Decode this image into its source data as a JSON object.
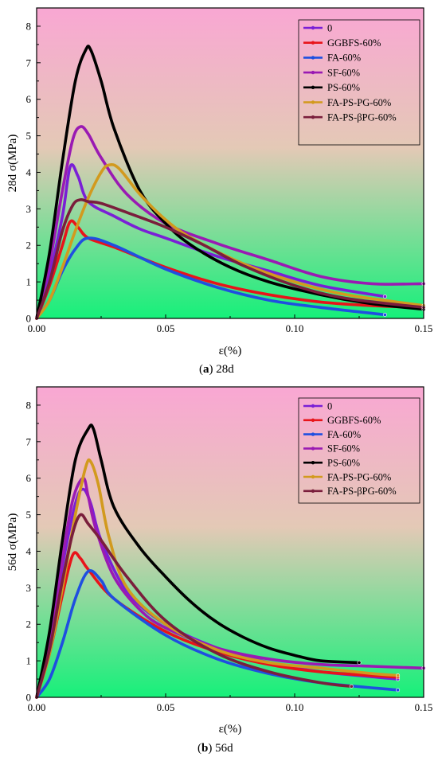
{
  "colors": {
    "0": "#7a1fd6",
    "GGBFS-60%": "#e8141a",
    "FA-60%": "#1f4fe0",
    "SF-60%": "#9a1ab3",
    "PS-60%": "#000000",
    "FA-PS-PG-60%": "#d29a1e",
    "FA-PS-βPG-60%": "#7a1e3c",
    "bg_top": "#f9a7d3",
    "bg_bottom": "#16f07a"
  },
  "chart_data": [
    {
      "type": "line",
      "panel": "a",
      "caption_letter": "a",
      "caption_text": " 28d",
      "xlabel": "ε(%)",
      "ylabel": "28d σ(MPa)",
      "xlim": [
        0,
        0.15
      ],
      "ylim": [
        0,
        8.5
      ],
      "xticks": [
        0,
        0.05,
        0.1,
        0.15
      ],
      "xtick_labels": [
        "0.00",
        "0.05",
        "0.10",
        "0.15"
      ],
      "yticks": [
        0,
        1,
        2,
        3,
        4,
        5,
        6,
        7,
        8
      ],
      "ytick_labels": [
        "0",
        "1",
        "2",
        "3",
        "4",
        "5",
        "6",
        "7",
        "8"
      ],
      "legend_position": "top-right",
      "series": [
        {
          "name": "0",
          "x": [
            0,
            0.005,
            0.01,
            0.013,
            0.016,
            0.02,
            0.03,
            0.04,
            0.05,
            0.07,
            0.09,
            0.11,
            0.135
          ],
          "y": [
            0,
            1.2,
            2.8,
            4.15,
            3.9,
            3.2,
            2.8,
            2.45,
            2.2,
            1.7,
            1.3,
            0.9,
            0.6
          ]
        },
        {
          "name": "GGBFS-60%",
          "x": [
            0,
            0.005,
            0.01,
            0.013,
            0.016,
            0.02,
            0.03,
            0.05,
            0.07,
            0.09,
            0.11,
            0.13,
            0.15
          ],
          "y": [
            0,
            0.9,
            2.0,
            2.65,
            2.5,
            2.2,
            1.95,
            1.4,
            0.95,
            0.65,
            0.45,
            0.35,
            0.3
          ]
        },
        {
          "name": "FA-60%",
          "x": [
            0,
            0.005,
            0.01,
            0.015,
            0.02,
            0.03,
            0.05,
            0.07,
            0.09,
            0.11,
            0.135
          ],
          "y": [
            0,
            0.5,
            1.3,
            1.9,
            2.2,
            2.0,
            1.35,
            0.85,
            0.5,
            0.3,
            0.1
          ]
        },
        {
          "name": "SF-60%",
          "x": [
            0,
            0.005,
            0.01,
            0.014,
            0.017,
            0.02,
            0.025,
            0.035,
            0.05,
            0.07,
            0.09,
            0.11,
            0.13,
            0.15
          ],
          "y": [
            0,
            1.5,
            3.5,
            4.9,
            5.25,
            5.05,
            4.4,
            3.4,
            2.6,
            2.05,
            1.6,
            1.15,
            0.95,
            0.95
          ]
        },
        {
          "name": "PS-60%",
          "x": [
            0,
            0.005,
            0.01,
            0.015,
            0.019,
            0.021,
            0.025,
            0.03,
            0.04,
            0.05,
            0.06,
            0.075,
            0.09,
            0.11,
            0.13,
            0.15
          ],
          "y": [
            0,
            1.8,
            4.3,
            6.5,
            7.35,
            7.35,
            6.5,
            5.2,
            3.5,
            2.6,
            2.0,
            1.4,
            1.0,
            0.65,
            0.4,
            0.25
          ]
        },
        {
          "name": "FA-PS-PG-60%",
          "x": [
            0,
            0.005,
            0.01,
            0.015,
            0.02,
            0.025,
            0.028,
            0.032,
            0.04,
            0.05,
            0.06,
            0.08,
            0.1,
            0.12,
            0.15
          ],
          "y": [
            0,
            0.5,
            1.4,
            2.4,
            3.3,
            4.0,
            4.2,
            4.1,
            3.4,
            2.7,
            2.2,
            1.5,
            1.0,
            0.65,
            0.35
          ]
        },
        {
          "name": "FA-PS-βPG-60%",
          "x": [
            0,
            0.005,
            0.01,
            0.014,
            0.017,
            0.02,
            0.025,
            0.035,
            0.05,
            0.065,
            0.08,
            0.1,
            0.12,
            0.15
          ],
          "y": [
            0,
            1.0,
            2.4,
            3.1,
            3.25,
            3.2,
            3.15,
            2.9,
            2.5,
            2.0,
            1.45,
            0.9,
            0.55,
            0.3
          ]
        }
      ]
    },
    {
      "type": "line",
      "panel": "b",
      "caption_letter": "b",
      "caption_text": " 56d",
      "xlabel": "ε(%)",
      "ylabel": "56d σ(MPa)",
      "xlim": [
        0,
        0.15
      ],
      "ylim": [
        0,
        8.5
      ],
      "xticks": [
        0,
        0.05,
        0.1,
        0.15
      ],
      "xtick_labels": [
        "0.00",
        "0.05",
        "0.10",
        "0.15"
      ],
      "yticks": [
        0,
        1,
        2,
        3,
        4,
        5,
        6,
        7,
        8
      ],
      "ytick_labels": [
        "0",
        "1",
        "2",
        "3",
        "4",
        "5",
        "6",
        "7",
        "8"
      ],
      "legend_position": "top-right",
      "series": [
        {
          "name": "0",
          "x": [
            0,
            0.005,
            0.01,
            0.015,
            0.018,
            0.021,
            0.025,
            0.035,
            0.05,
            0.07,
            0.09,
            0.11,
            0.14
          ],
          "y": [
            0,
            1.5,
            3.6,
            5.3,
            5.7,
            5.3,
            4.3,
            2.9,
            2.0,
            1.35,
            0.95,
            0.7,
            0.5
          ]
        },
        {
          "name": "GGBFS-60%",
          "x": [
            0,
            0.005,
            0.01,
            0.014,
            0.017,
            0.02,
            0.03,
            0.05,
            0.07,
            0.09,
            0.11,
            0.14
          ],
          "y": [
            0,
            1.2,
            2.8,
            3.9,
            3.8,
            3.5,
            2.7,
            1.8,
            1.25,
            0.9,
            0.7,
            0.55
          ]
        },
        {
          "name": "FA-60%",
          "x": [
            0,
            0.005,
            0.01,
            0.015,
            0.02,
            0.025,
            0.03,
            0.05,
            0.07,
            0.09,
            0.11,
            0.14
          ],
          "y": [
            0,
            0.5,
            1.5,
            2.7,
            3.45,
            3.2,
            2.7,
            1.7,
            1.05,
            0.65,
            0.4,
            0.2
          ]
        },
        {
          "name": "SF-60%",
          "x": [
            0,
            0.005,
            0.01,
            0.014,
            0.018,
            0.02,
            0.023,
            0.03,
            0.04,
            0.05,
            0.07,
            0.09,
            0.11,
            0.13,
            0.15
          ],
          "y": [
            0,
            1.5,
            3.8,
            5.4,
            6.0,
            5.5,
            4.6,
            3.3,
            2.4,
            1.9,
            1.35,
            1.05,
            0.9,
            0.85,
            0.8
          ]
        },
        {
          "name": "PS-60%",
          "x": [
            0,
            0.005,
            0.01,
            0.015,
            0.02,
            0.022,
            0.025,
            0.03,
            0.04,
            0.05,
            0.06,
            0.07,
            0.08,
            0.09,
            0.1,
            0.11,
            0.125
          ],
          "y": [
            0,
            1.8,
            4.3,
            6.5,
            7.35,
            7.35,
            6.5,
            5.2,
            4.1,
            3.3,
            2.6,
            2.05,
            1.65,
            1.35,
            1.15,
            1.0,
            0.95
          ]
        },
        {
          "name": "FA-PS-PG-60%",
          "x": [
            0,
            0.005,
            0.01,
            0.015,
            0.019,
            0.021,
            0.024,
            0.028,
            0.035,
            0.05,
            0.07,
            0.09,
            0.11,
            0.13,
            0.14
          ],
          "y": [
            0,
            1.2,
            3.0,
            5.0,
            6.3,
            6.45,
            5.8,
            4.4,
            3.0,
            2.0,
            1.3,
            0.95,
            0.8,
            0.65,
            0.6
          ]
        },
        {
          "name": "FA-PS-βPG-60%",
          "x": [
            0,
            0.005,
            0.01,
            0.014,
            0.017,
            0.02,
            0.025,
            0.035,
            0.05,
            0.07,
            0.09,
            0.11,
            0.122
          ],
          "y": [
            0,
            1.3,
            3.2,
            4.5,
            5.0,
            4.75,
            4.3,
            3.3,
            2.1,
            1.2,
            0.7,
            0.4,
            0.3
          ]
        }
      ]
    }
  ]
}
